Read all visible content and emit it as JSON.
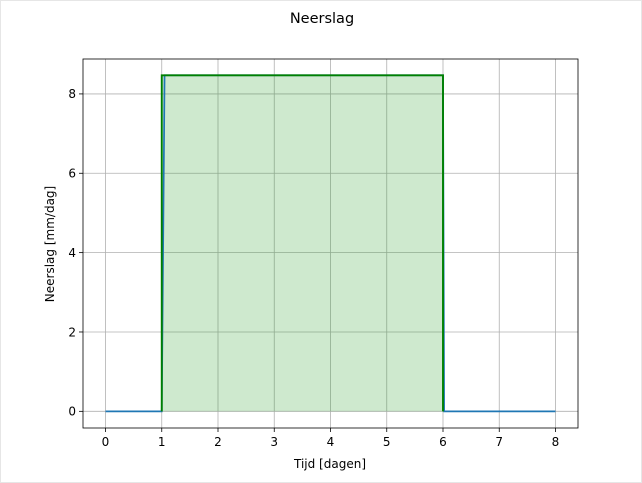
{
  "chart_data": {
    "type": "line",
    "title": "Neerslag",
    "xlabel": "Tijd [dagen]",
    "ylabel": "Neerslag [mm/dag]",
    "xlim": [
      -0.4,
      8.4
    ],
    "ylim": [
      -0.42,
      8.88
    ],
    "xticks": [
      0,
      1,
      2,
      3,
      4,
      5,
      6,
      7,
      8
    ],
    "yticks": [
      0,
      2,
      4,
      6,
      8
    ],
    "grid": true,
    "series": [
      {
        "color": "#1f77b4",
        "x": [
          0,
          1,
          1.05,
          6,
          6.02,
          8
        ],
        "y": [
          0,
          0,
          8.47,
          8.47,
          0,
          0
        ]
      },
      {
        "color": "#008000",
        "x": [
          1,
          1,
          6,
          6
        ],
        "y": [
          0,
          8.47,
          8.47,
          0
        ]
      }
    ],
    "fill": {
      "color": "#2ca02c",
      "opacity": 0.23,
      "x": [
        1,
        6
      ],
      "y": 8.47
    }
  }
}
